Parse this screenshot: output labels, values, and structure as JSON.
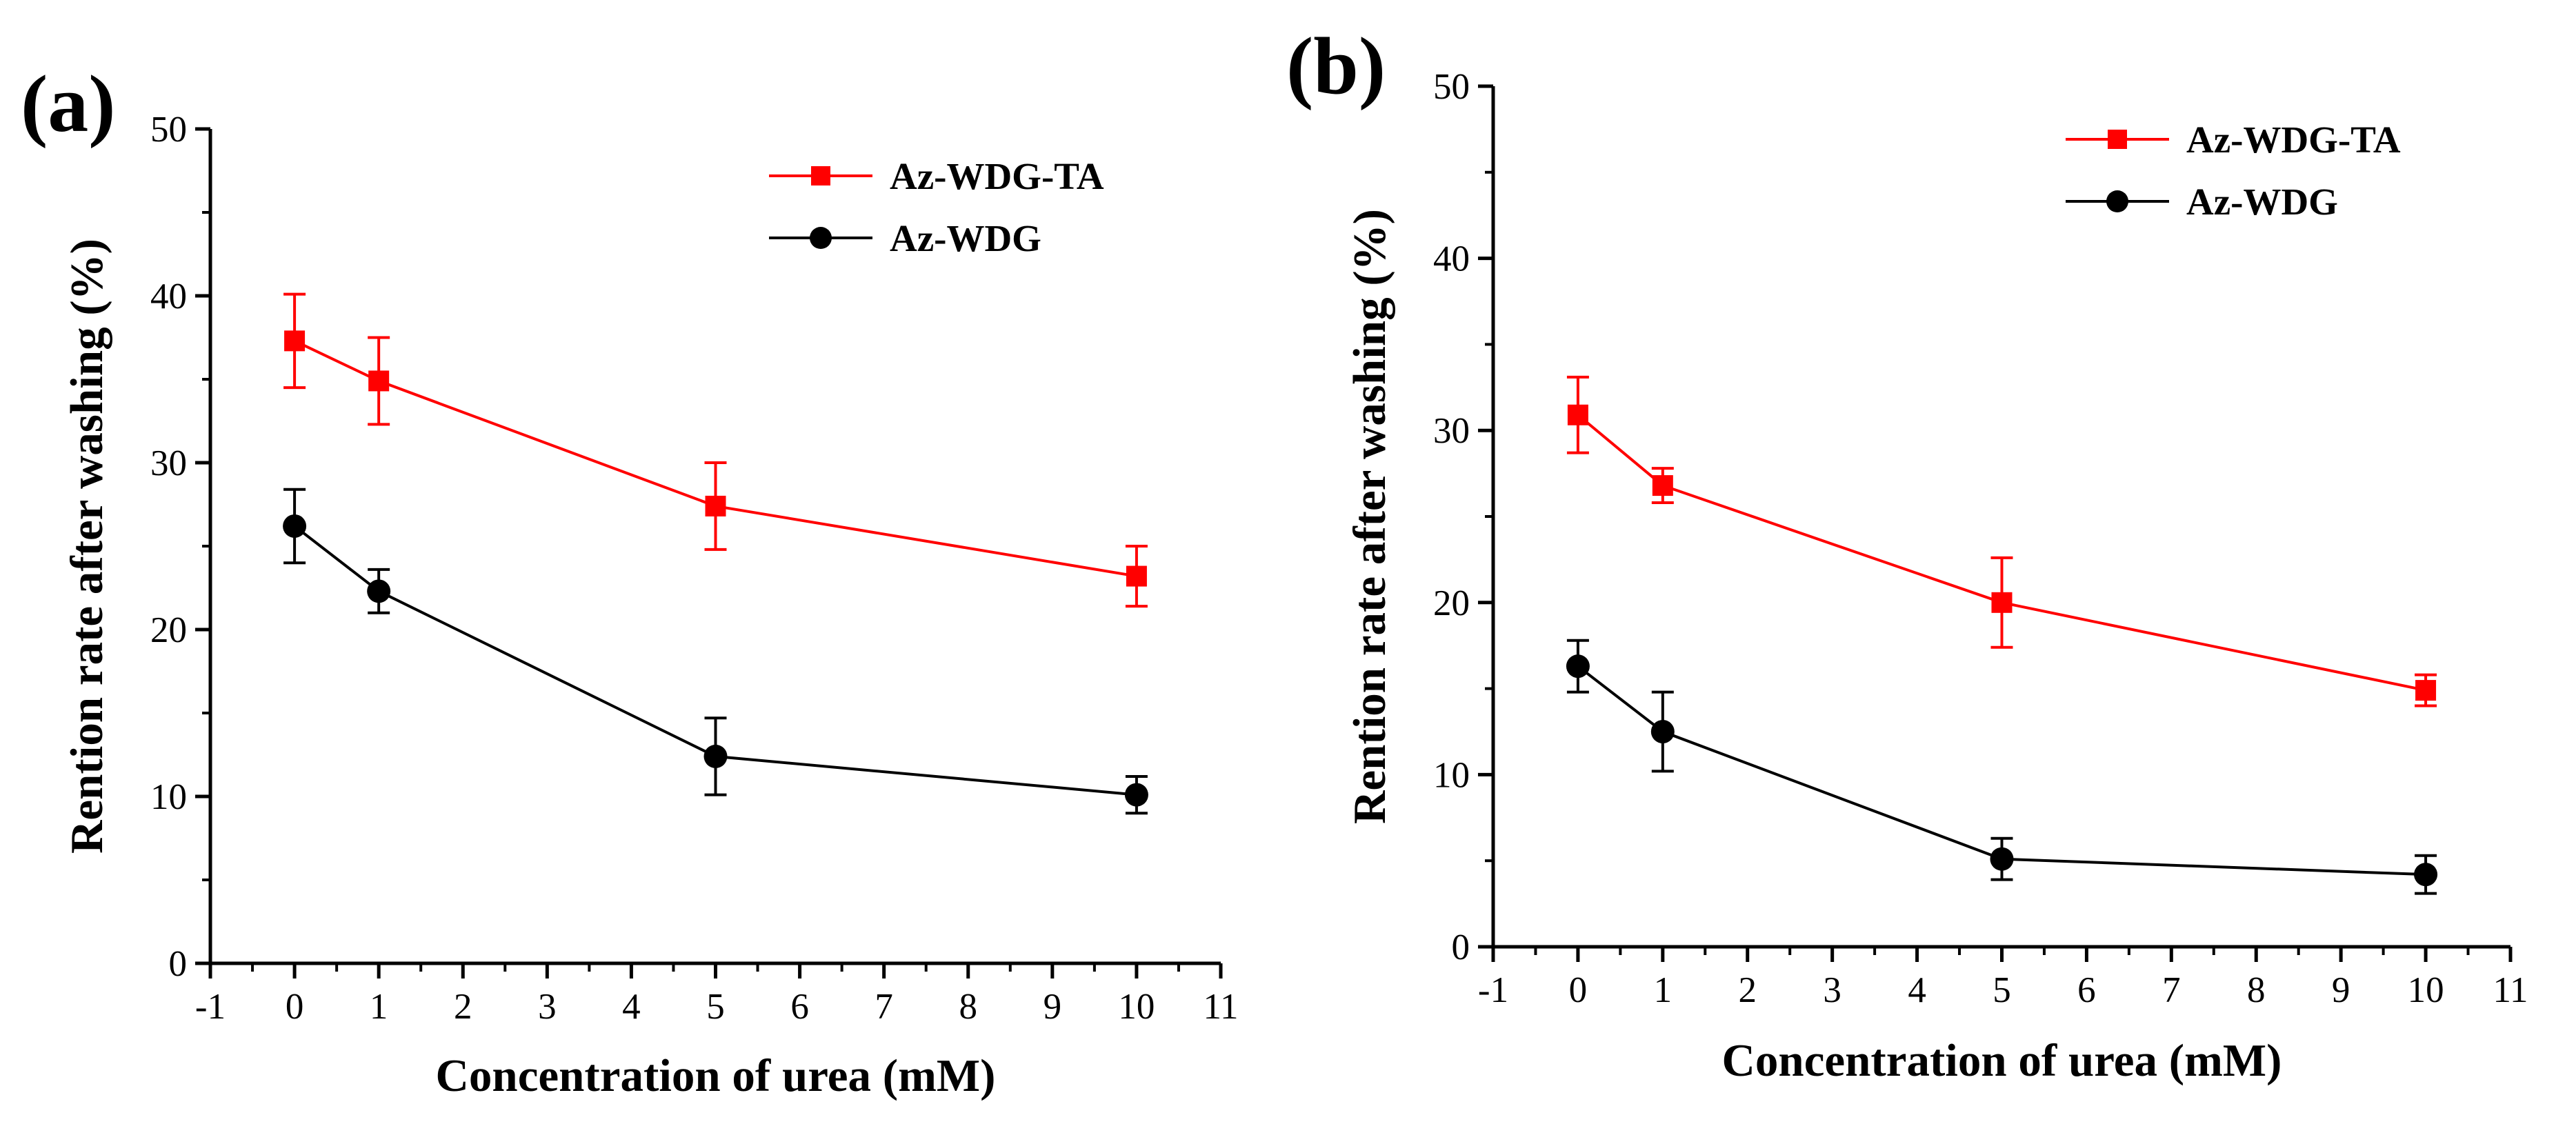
{
  "chart_data": [
    {
      "panel": "(a)",
      "type": "line",
      "xlabel": "Concentration of urea (mM)",
      "ylabel": "Rention rate after washing (%)",
      "xlim": [
        -1,
        11
      ],
      "ylim": [
        0,
        50
      ],
      "xticks": [
        -1,
        0,
        1,
        2,
        3,
        4,
        5,
        6,
        7,
        8,
        9,
        10,
        11
      ],
      "yticks": [
        0,
        10,
        20,
        30,
        40,
        50
      ],
      "legend_position": "top-right",
      "series": [
        {
          "name": "Az-WDG-TA",
          "color": "#ff0000",
          "marker": "square",
          "x": [
            0,
            1,
            5,
            10
          ],
          "values": [
            37.3,
            34.9,
            27.4,
            23.2
          ],
          "errors": [
            2.8,
            2.6,
            2.6,
            1.8
          ]
        },
        {
          "name": "Az-WDG",
          "color": "#000000",
          "marker": "circle",
          "x": [
            0,
            1,
            5,
            10
          ],
          "values": [
            26.2,
            22.3,
            12.4,
            10.1
          ],
          "errors": [
            2.2,
            1.3,
            2.3,
            1.1
          ]
        }
      ]
    },
    {
      "panel": "(b)",
      "type": "line",
      "xlabel": "Concentration of urea (mM)",
      "ylabel": "Rention rate after washing (%)",
      "xlim": [
        -1,
        11
      ],
      "ylim": [
        0,
        50
      ],
      "xticks": [
        -1,
        0,
        1,
        2,
        3,
        4,
        5,
        6,
        7,
        8,
        9,
        10,
        11
      ],
      "yticks": [
        0,
        10,
        20,
        30,
        40,
        50
      ],
      "legend_position": "top-right",
      "series": [
        {
          "name": "Az-WDG-TA",
          "color": "#ff0000",
          "marker": "square",
          "x": [
            0,
            1,
            5,
            10
          ],
          "values": [
            30.9,
            26.8,
            20.0,
            14.9
          ],
          "errors": [
            2.2,
            1.0,
            2.6,
            0.9
          ]
        },
        {
          "name": "Az-WDG",
          "color": "#000000",
          "marker": "circle",
          "x": [
            0,
            1,
            5,
            10
          ],
          "values": [
            16.3,
            12.5,
            5.1,
            4.2
          ],
          "errors": [
            1.5,
            2.3,
            1.2,
            1.1
          ]
        }
      ]
    }
  ]
}
